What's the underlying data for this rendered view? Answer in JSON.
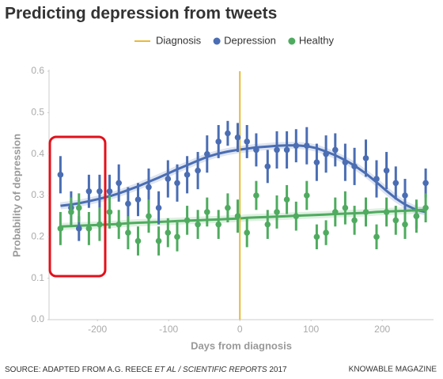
{
  "chart_data": {
    "type": "scatter",
    "title": "Predicting depression from tweets",
    "x_label": "Days from diagnosis",
    "y_label": "Probability of depression",
    "xlim": [
      -268,
      272
    ],
    "ylim": [
      0,
      0.6
    ],
    "xticks": [
      -200,
      -100,
      0,
      100,
      200
    ],
    "yticks": [
      {
        "value": 0,
        "label": "0.0"
      },
      0.1,
      0.2,
      0.3,
      0.4,
      0.5,
      0.6
    ],
    "vline": {
      "x": 0,
      "label": "Diagnosis",
      "color": "#e8b93a"
    },
    "x": [
      -252,
      -237,
      -226,
      -212,
      -197,
      -183,
      -170,
      -157,
      -143,
      -128,
      -114,
      -101,
      -88,
      -74,
      -59,
      -46,
      -30,
      -17,
      -3,
      10,
      23,
      39,
      52,
      66,
      79,
      94,
      108,
      121,
      134,
      148,
      161,
      177,
      192,
      206,
      219,
      232,
      248,
      261
    ],
    "series": [
      {
        "name": "Depression",
        "color": "#4a6db3",
        "values": [
          0.35,
          0.27,
          0.22,
          0.31,
          0.31,
          0.31,
          0.33,
          0.28,
          0.29,
          0.32,
          0.27,
          0.34,
          0.33,
          0.35,
          0.36,
          0.4,
          0.43,
          0.45,
          0.44,
          0.43,
          0.41,
          0.37,
          0.41,
          0.41,
          0.42,
          0.42,
          0.38,
          0.4,
          0.41,
          0.38,
          0.37,
          0.39,
          0.34,
          0.36,
          0.33,
          0.3,
          0.25,
          0.33
        ],
        "errors": [
          0.045,
          0.04,
          0.03,
          0.04,
          0.04,
          0.04,
          0.045,
          0.04,
          0.04,
          0.045,
          0.04,
          0.045,
          0.045,
          0.045,
          0.045,
          0.045,
          0.04,
          0.03,
          0.035,
          0.04,
          0.04,
          0.04,
          0.045,
          0.045,
          0.04,
          0.045,
          0.045,
          0.045,
          0.04,
          0.045,
          0.045,
          0.045,
          0.045,
          0.045,
          0.04,
          0.04,
          0.03,
          0.035
        ],
        "trend": [
          0.275,
          0.278,
          0.281,
          0.286,
          0.292,
          0.298,
          0.305,
          0.313,
          0.322,
          0.333,
          0.343,
          0.353,
          0.363,
          0.373,
          0.384,
          0.393,
          0.401,
          0.406,
          0.41,
          0.413,
          0.416,
          0.418,
          0.42,
          0.421,
          0.421,
          0.419,
          0.414,
          0.406,
          0.397,
          0.385,
          0.372,
          0.353,
          0.332,
          0.311,
          0.293,
          0.278,
          0.265,
          0.26
        ]
      },
      {
        "name": "Healthy",
        "color": "#4fab5f",
        "values": [
          0.22,
          0.26,
          0.27,
          0.22,
          0.23,
          0.26,
          0.23,
          0.21,
          0.19,
          0.25,
          0.19,
          0.21,
          0.2,
          0.24,
          0.23,
          0.26,
          0.23,
          0.27,
          0.25,
          0.21,
          0.3,
          0.23,
          0.26,
          0.29,
          0.25,
          0.3,
          0.2,
          0.21,
          0.26,
          0.27,
          0.24,
          0.26,
          0.2,
          0.26,
          0.24,
          0.23,
          0.25,
          0.27
        ],
        "errors": [
          0.04,
          0.035,
          0.035,
          0.04,
          0.04,
          0.04,
          0.035,
          0.04,
          0.035,
          0.04,
          0.035,
          0.035,
          0.035,
          0.035,
          0.035,
          0.035,
          0.035,
          0.035,
          0.04,
          0.035,
          0.035,
          0.035,
          0.04,
          0.035,
          0.035,
          0.035,
          0.03,
          0.03,
          0.035,
          0.04,
          0.035,
          0.035,
          0.03,
          0.035,
          0.035,
          0.035,
          0.04,
          0.035
        ],
        "trend": [
          0.225,
          0.226,
          0.227,
          0.228,
          0.229,
          0.23,
          0.231,
          0.233,
          0.234,
          0.235,
          0.236,
          0.237,
          0.238,
          0.239,
          0.24,
          0.241,
          0.242,
          0.243,
          0.244,
          0.246,
          0.247,
          0.248,
          0.249,
          0.25,
          0.251,
          0.252,
          0.253,
          0.254,
          0.255,
          0.256,
          0.257,
          0.258,
          0.26,
          0.261,
          0.262,
          0.263,
          0.264,
          0.265
        ]
      }
    ],
    "source": [
      "SOURCE: ADAPTED FROM A.G. REECE ",
      "ET AL / SCIENTIFIC REPORTS",
      " 2017"
    ],
    "credit": "KNOWABLE MAGAZINE"
  }
}
